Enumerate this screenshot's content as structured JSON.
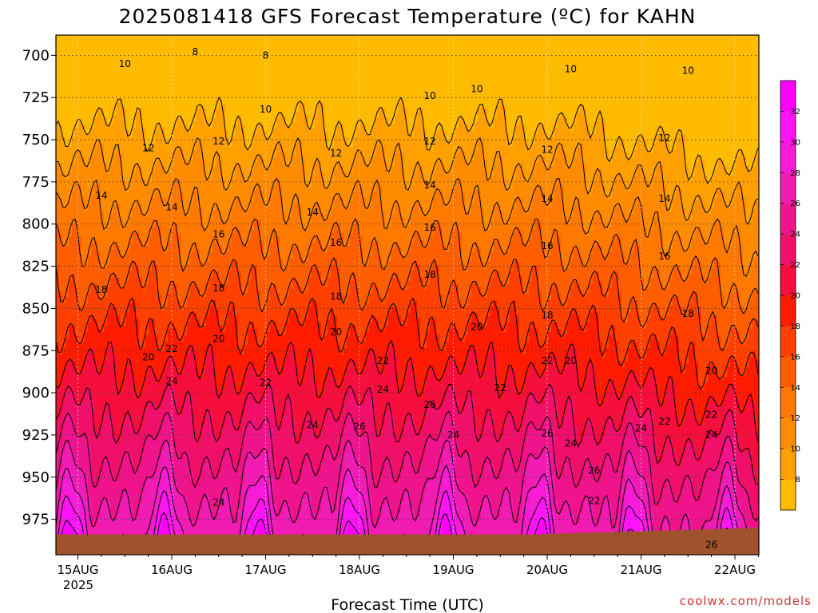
{
  "chart_data": {
    "type": "heatmap",
    "title": "2025081418 GFS Forecast Temperature (ºC) for KAHN",
    "xlabel": "Forecast Time (UTC)",
    "ylabel": "",
    "credit": "coolwx.com/models",
    "x_ticks": [
      "15AUG",
      "16AUG",
      "17AUG",
      "18AUG",
      "19AUG",
      "20AUG",
      "21AUG",
      "22AUG"
    ],
    "x_year": "2025",
    "y_ticks": [
      "700",
      "725",
      "750",
      "775",
      "800",
      "825",
      "850",
      "875",
      "900",
      "925",
      "950",
      "975"
    ],
    "y_values": [
      700,
      725,
      750,
      775,
      800,
      825,
      850,
      875,
      900,
      925,
      950,
      975
    ],
    "ylim": [
      688,
      996
    ],
    "y_inverted": true,
    "grid": true,
    "colorbar": {
      "placement": "right",
      "levels": [
        8,
        10,
        12,
        14,
        16,
        18,
        20,
        22,
        24,
        26,
        28,
        30,
        32
      ],
      "colors": [
        "#ffbb00",
        "#ffa000",
        "#ff8c00",
        "#ff7800",
        "#ff5e00",
        "#ff4000",
        "#ff1c00",
        "#f60f3c",
        "#f0106a",
        "#f0148c",
        "#f01cb4",
        "#f81cd8",
        "#ff14f8",
        "#ff00ff"
      ]
    },
    "ground_color": "#a0522d",
    "contour_labels": [
      {
        "time": "15AUG 12Z",
        "pressure": 705,
        "value": "10"
      },
      {
        "time": "16AUG 06Z",
        "pressure": 698,
        "value": "8"
      },
      {
        "time": "17AUG 00Z",
        "pressure": 700,
        "value": "8"
      },
      {
        "time": "17AUG 00Z",
        "pressure": 732,
        "value": "10"
      },
      {
        "time": "18AUG 18Z",
        "pressure": 724,
        "value": "10"
      },
      {
        "time": "19AUG 06Z",
        "pressure": 720,
        "value": "10"
      },
      {
        "time": "20AUG 06Z",
        "pressure": 708,
        "value": "10"
      },
      {
        "time": "21AUG 12Z",
        "pressure": 709,
        "value": "10"
      },
      {
        "time": "15AUG 18Z",
        "pressure": 755,
        "value": "12"
      },
      {
        "time": "16AUG 12Z",
        "pressure": 751,
        "value": "12"
      },
      {
        "time": "17AUG 18Z",
        "pressure": 758,
        "value": "12"
      },
      {
        "time": "18AUG 18Z",
        "pressure": 751,
        "value": "12"
      },
      {
        "time": "20AUG 00Z",
        "pressure": 756,
        "value": "12"
      },
      {
        "time": "21AUG 06Z",
        "pressure": 749,
        "value": "12"
      },
      {
        "time": "15AUG 06Z",
        "pressure": 783,
        "value": "14"
      },
      {
        "time": "16AUG 00Z",
        "pressure": 790,
        "value": "14"
      },
      {
        "time": "17AUG 12Z",
        "pressure": 793,
        "value": "14"
      },
      {
        "time": "18AUG 18Z",
        "pressure": 777,
        "value": "14"
      },
      {
        "time": "20AUG 00Z",
        "pressure": 785,
        "value": "14"
      },
      {
        "time": "21AUG 06Z",
        "pressure": 785,
        "value": "14"
      },
      {
        "time": "16AUG 12Z",
        "pressure": 806,
        "value": "16"
      },
      {
        "time": "17AUG 18Z",
        "pressure": 811,
        "value": "16"
      },
      {
        "time": "18AUG 18Z",
        "pressure": 802,
        "value": "16"
      },
      {
        "time": "20AUG 00Z",
        "pressure": 813,
        "value": "16"
      },
      {
        "time": "21AUG 06Z",
        "pressure": 819,
        "value": "16"
      },
      {
        "time": "15AUG 06Z",
        "pressure": 839,
        "value": "18"
      },
      {
        "time": "16AUG 12Z",
        "pressure": 838,
        "value": "18"
      },
      {
        "time": "17AUG 18Z",
        "pressure": 843,
        "value": "18"
      },
      {
        "time": "18AUG 18Z",
        "pressure": 830,
        "value": "18"
      },
      {
        "time": "20AUG 00Z",
        "pressure": 854,
        "value": "18"
      },
      {
        "time": "21AUG 12Z",
        "pressure": 853,
        "value": "18"
      },
      {
        "time": "16AUG 12Z",
        "pressure": 868,
        "value": "20"
      },
      {
        "time": "17AUG 18Z",
        "pressure": 864,
        "value": "20"
      },
      {
        "time": "19AUG 06Z",
        "pressure": 861,
        "value": "20"
      },
      {
        "time": "20AUG 06Z",
        "pressure": 881,
        "value": "20"
      },
      {
        "time": "21AUG 18Z",
        "pressure": 887,
        "value": "20"
      },
      {
        "time": "15AUG 18Z",
        "pressure": 879,
        "value": "20"
      },
      {
        "time": "16AUG 00Z",
        "pressure": 874,
        "value": "22"
      },
      {
        "time": "17AUG 00Z",
        "pressure": 894,
        "value": "22"
      },
      {
        "time": "18AUG 06Z",
        "pressure": 881,
        "value": "22"
      },
      {
        "time": "19AUG 12Z",
        "pressure": 897,
        "value": "22"
      },
      {
        "time": "20AUG 00Z",
        "pressure": 881,
        "value": "22"
      },
      {
        "time": "21AUG 06Z",
        "pressure": 917,
        "value": "22"
      },
      {
        "time": "21AUG 18Z",
        "pressure": 913,
        "value": "22"
      },
      {
        "time": "16AUG 00Z",
        "pressure": 893,
        "value": "24"
      },
      {
        "time": "17AUG 12Z",
        "pressure": 919,
        "value": "24"
      },
      {
        "time": "18AUG 06Z",
        "pressure": 898,
        "value": "24"
      },
      {
        "time": "19AUG 00Z",
        "pressure": 925,
        "value": "24"
      },
      {
        "time": "20AUG 06Z",
        "pressure": 930,
        "value": "24"
      },
      {
        "time": "21AUG 00Z",
        "pressure": 921,
        "value": "24"
      },
      {
        "time": "21AUG 18Z",
        "pressure": 925,
        "value": "24"
      },
      {
        "time": "16AUG 12Z",
        "pressure": 965,
        "value": "24"
      },
      {
        "time": "18AUG 00Z",
        "pressure": 920,
        "value": "26"
      },
      {
        "time": "18AUG 18Z",
        "pressure": 907,
        "value": "26"
      },
      {
        "time": "20AUG 00Z",
        "pressure": 924,
        "value": "26"
      },
      {
        "time": "20AUG 12Z",
        "pressure": 946,
        "value": "26"
      },
      {
        "time": "21AUG 18Z",
        "pressure": 990,
        "value": "26"
      },
      {
        "time": "20AUG 12Z",
        "pressure": 964,
        "value": "22"
      }
    ]
  }
}
